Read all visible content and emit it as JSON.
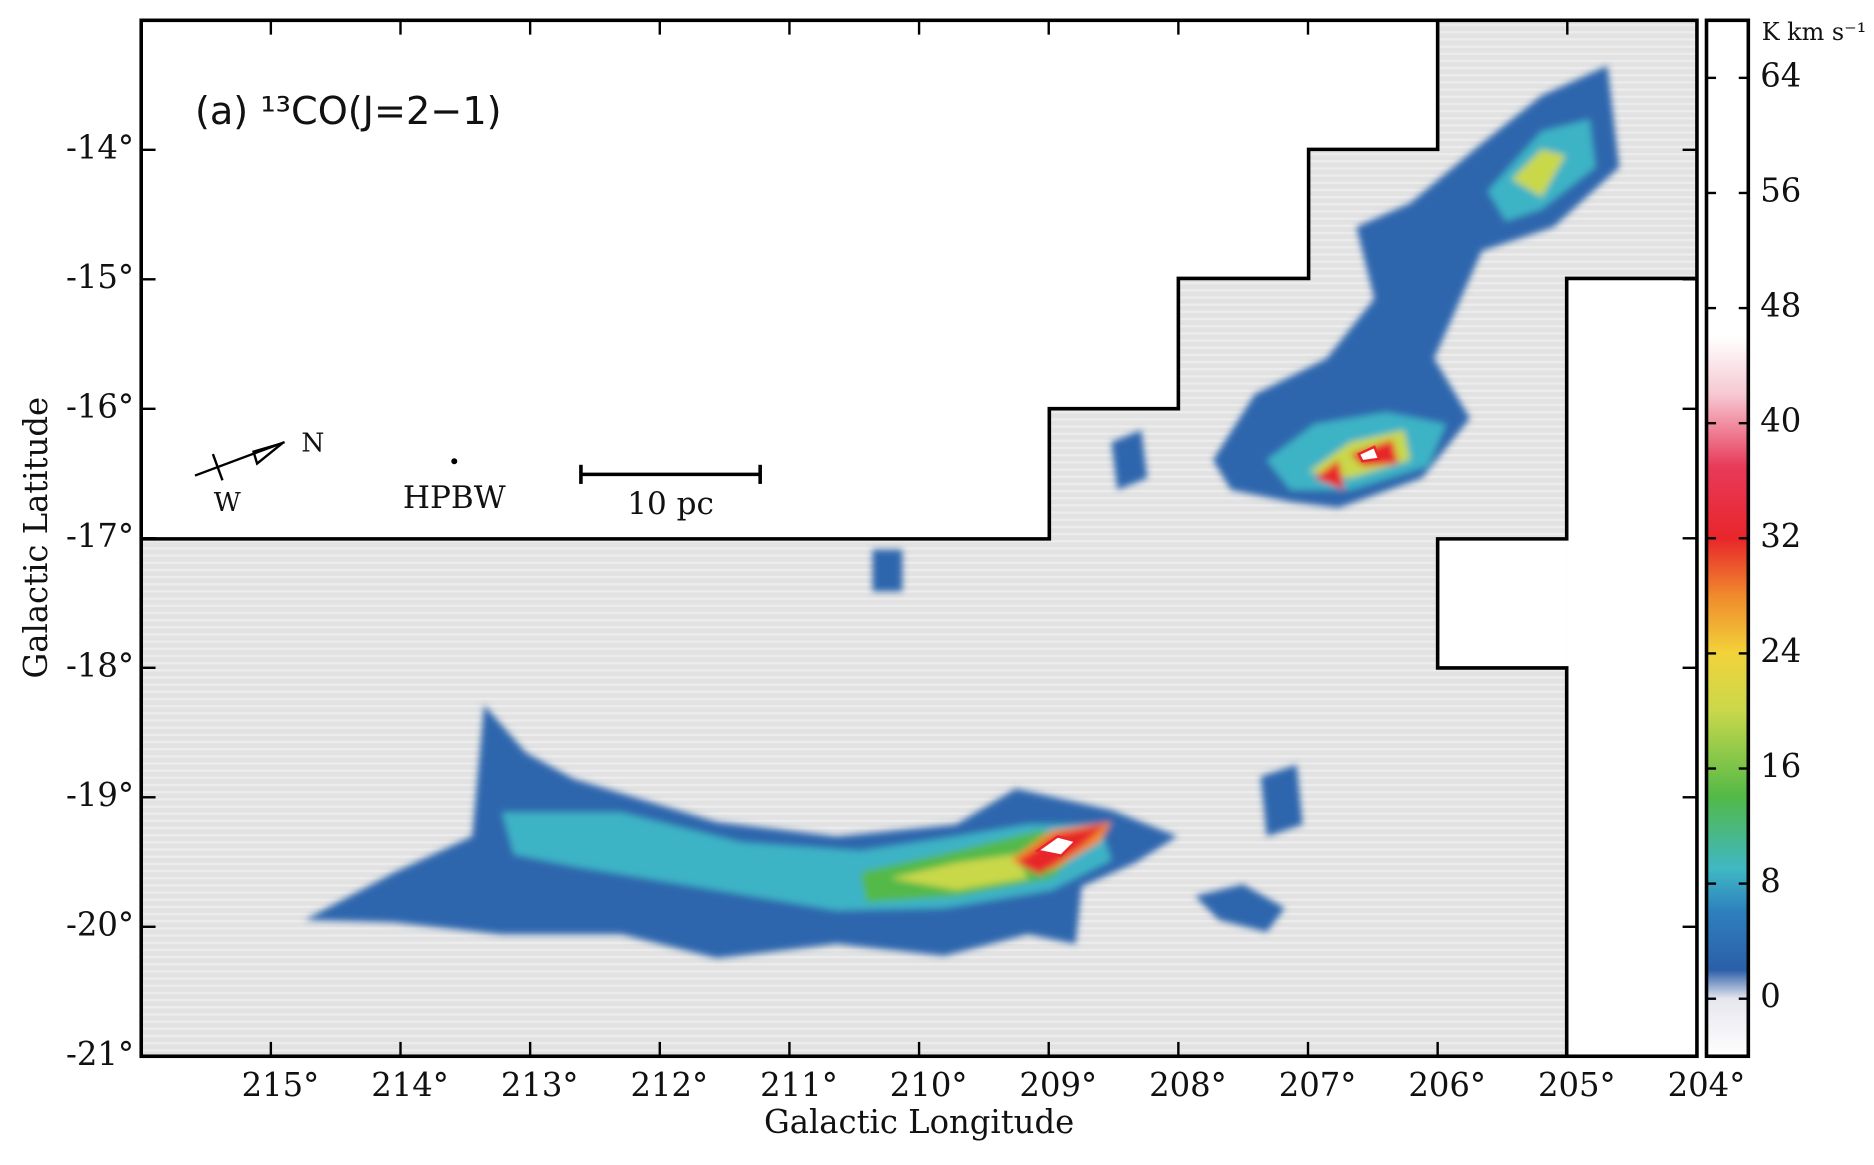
{
  "chart_data": {
    "type": "map",
    "title": "(a) ¹³CO(J=2−1)",
    "xlabel": "Galactic Longitude",
    "ylabel": "Galactic Latitude",
    "xlim": [
      216,
      204
    ],
    "ylim": [
      -21,
      -13
    ],
    "xticks": [
      {
        "value": 215,
        "label": "215°"
      },
      {
        "value": 214,
        "label": "214°"
      },
      {
        "value": 213,
        "label": "213°"
      },
      {
        "value": 212,
        "label": "212°"
      },
      {
        "value": 211,
        "label": "211°"
      },
      {
        "value": 210,
        "label": "210°"
      },
      {
        "value": 209,
        "label": "209°"
      },
      {
        "value": 208,
        "label": "208°"
      },
      {
        "value": 207,
        "label": "207°"
      },
      {
        "value": 206,
        "label": "206°"
      },
      {
        "value": 205,
        "label": "205°"
      },
      {
        "value": 204,
        "label": "204°"
      }
    ],
    "yticks": [
      {
        "value": -21,
        "label": "-21°"
      },
      {
        "value": -20,
        "label": "-20°"
      },
      {
        "value": -19,
        "label": "-19°"
      },
      {
        "value": -18,
        "label": "-18°"
      },
      {
        "value": -17,
        "label": "-17°"
      },
      {
        "value": -16,
        "label": "-16°"
      },
      {
        "value": -15,
        "label": "-15°"
      },
      {
        "value": -14,
        "label": "-14°"
      }
    ],
    "colorbar_label": "K km s⁻¹",
    "zlim": [
      -4,
      68
    ],
    "zticks": [
      0,
      8,
      16,
      24,
      32,
      40,
      48,
      56,
      64
    ],
    "colorscale": [
      [
        -4,
        "#ffffff"
      ],
      [
        0,
        "#e6e6ee"
      ],
      [
        2,
        "#2c5fa8"
      ],
      [
        6,
        "#2e7fbd"
      ],
      [
        9,
        "#3fb8c4"
      ],
      [
        14,
        "#52b948"
      ],
      [
        20,
        "#c9d84a"
      ],
      [
        24,
        "#f2d33a"
      ],
      [
        28,
        "#f08a2c"
      ],
      [
        32,
        "#e8262b"
      ],
      [
        37,
        "#e83a5a"
      ],
      [
        42,
        "#f6c8d2"
      ],
      [
        46,
        "#ffffff"
      ],
      [
        68,
        "#ffffff"
      ]
    ],
    "annotations": {
      "north": "N",
      "west": "W",
      "beam": "HPBW",
      "scale_bar": "10 pc"
    }
  }
}
